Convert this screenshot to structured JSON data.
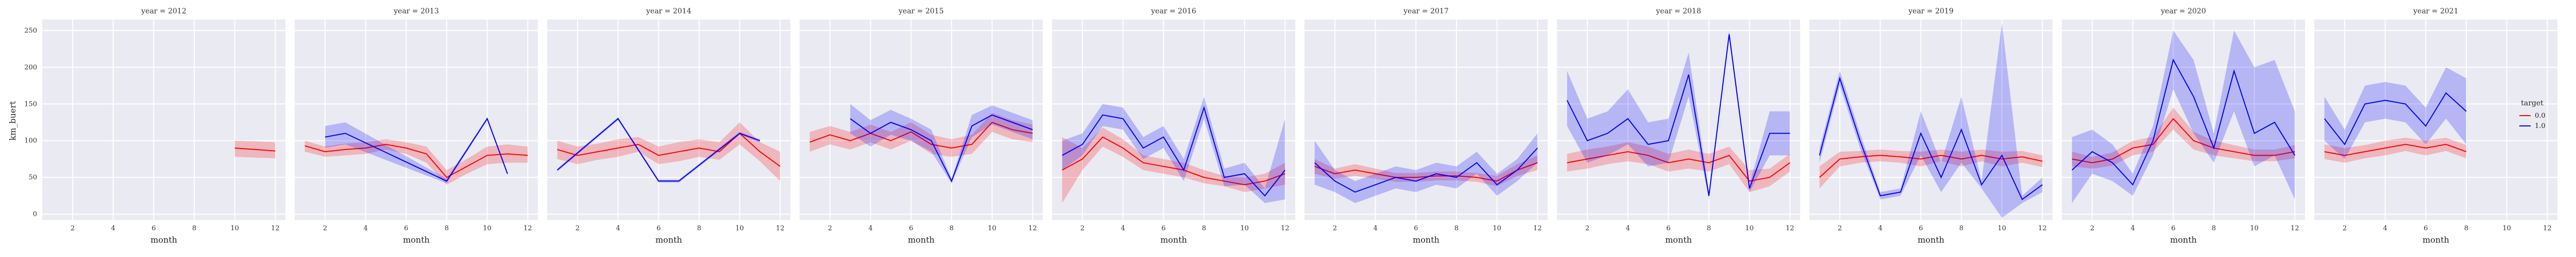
{
  "chart_data": {
    "type": "line",
    "facet_by": "year",
    "xlabel": "month",
    "ylabel": "km_buert",
    "xlim": [
      0.5,
      12.5
    ],
    "ylim": [
      -8,
      265
    ],
    "xticks": [
      "2",
      "4",
      "6",
      "8",
      "10",
      "12"
    ],
    "xtick_values": [
      2,
      4,
      6,
      8,
      10,
      12
    ],
    "yticks": [
      "0",
      "50",
      "100",
      "150",
      "200",
      "250"
    ],
    "ytick_values": [
      0,
      50,
      100,
      150,
      200,
      250
    ],
    "grid": true,
    "legend": {
      "title": "target",
      "placement": "right",
      "entries": [
        {
          "label": "0.0",
          "color": "#ff0000"
        },
        {
          "label": "1.0",
          "color": "#0000ff"
        }
      ]
    },
    "series_colors": {
      "0.0": "#ff0000",
      "1.0": "#0000ff"
    },
    "panels": [
      {
        "title": "year = 2012",
        "series": [
          {
            "name": "0.0",
            "x": [
              10,
              12
            ],
            "y": [
              90,
              86
            ],
            "lo": [
              78,
              76
            ],
            "hi": [
              100,
              98
            ]
          },
          {
            "name": "1.0",
            "x": [],
            "y": [],
            "lo": [],
            "hi": []
          }
        ]
      },
      {
        "title": "year = 2013",
        "series": [
          {
            "name": "0.0",
            "x": [
              1,
              2,
              3,
              4,
              5,
              6,
              7,
              8,
              9,
              10,
              11,
              12
            ],
            "y": [
              93,
              85,
              88,
              90,
              95,
              90,
              82,
              50,
              65,
              80,
              82,
              80
            ],
            "lo": [
              85,
              78,
              80,
              82,
              88,
              82,
              70,
              40,
              55,
              68,
              70,
              70
            ],
            "hi": [
              100,
              92,
              96,
              98,
              102,
              98,
              92,
              60,
              75,
              92,
              95,
              92
            ]
          },
          {
            "name": "1.0",
            "x": [
              2,
              3,
              8,
              10,
              11
            ],
            "y": [
              105,
              110,
              45,
              130,
              55
            ],
            "lo": [
              90,
              95,
              42,
              128,
              53
            ],
            "hi": [
              120,
              125,
              48,
              132,
              57
            ]
          }
        ]
      },
      {
        "title": "year = 2014",
        "series": [
          {
            "name": "0.0",
            "x": [
              1,
              2,
              3,
              4,
              5,
              6,
              7,
              8,
              9,
              10,
              11,
              12
            ],
            "y": [
              88,
              80,
              85,
              90,
              95,
              80,
              85,
              90,
              85,
              110,
              85,
              65
            ],
            "lo": [
              75,
              68,
              74,
              78,
              85,
              68,
              72,
              78,
              74,
              95,
              72,
              45
            ],
            "hi": [
              100,
              92,
              96,
              102,
              105,
              92,
              98,
              102,
              98,
              125,
              98,
              85
            ]
          },
          {
            "name": "1.0",
            "x": [
              1,
              4,
              6,
              7,
              10,
              11
            ],
            "y": [
              60,
              130,
              45,
              45,
              110,
              100
            ],
            "lo": [
              58,
              128,
              43,
              43,
              108,
              98
            ],
            "hi": [
              62,
              132,
              47,
              47,
              112,
              102
            ]
          }
        ]
      },
      {
        "title": "year = 2015",
        "series": [
          {
            "name": "0.0",
            "x": [
              1,
              2,
              3,
              4,
              5,
              6,
              7,
              8,
              9,
              10,
              11,
              12
            ],
            "y": [
              98,
              108,
              100,
              110,
              100,
              112,
              95,
              90,
              95,
              125,
              115,
              110
            ],
            "lo": [
              85,
              95,
              88,
              98,
              88,
              100,
              82,
              78,
              82,
              112,
              102,
              98
            ],
            "hi": [
              112,
              120,
              112,
              122,
              112,
              125,
              108,
              102,
              108,
              138,
              128,
              122
            ]
          },
          {
            "name": "1.0",
            "x": [
              3,
              4,
              5,
              6,
              7,
              8,
              9,
              10,
              11,
              12
            ],
            "y": [
              130,
              110,
              125,
              115,
              100,
              45,
              120,
              135,
              125,
              115
            ],
            "lo": [
              110,
              92,
              108,
              100,
              85,
              42,
              105,
              122,
              112,
              102
            ],
            "hi": [
              150,
              128,
              142,
              130,
              115,
              48,
              135,
              148,
              138,
              128
            ]
          }
        ]
      },
      {
        "title": "year = 2016",
        "series": [
          {
            "name": "0.0",
            "x": [
              1,
              2,
              3,
              4,
              5,
              6,
              7,
              8,
              9,
              10,
              11,
              12
            ],
            "y": [
              60,
              75,
              105,
              90,
              70,
              65,
              60,
              50,
              45,
              40,
              45,
              55
            ],
            "lo": [
              15,
              60,
              92,
              78,
              60,
              55,
              50,
              42,
              38,
              30,
              35,
              40
            ],
            "hi": [
              105,
              90,
              118,
              102,
              80,
              75,
              70,
              60,
              52,
              50,
              55,
              70
            ]
          },
          {
            "name": "1.0",
            "x": [
              1,
              2,
              3,
              4,
              5,
              6,
              7,
              8,
              9,
              10,
              11,
              12
            ],
            "y": [
              80,
              95,
              135,
              130,
              90,
              105,
              60,
              145,
              50,
              55,
              25,
              60
            ],
            "lo": [
              60,
              80,
              120,
              115,
              75,
              90,
              45,
              130,
              38,
              40,
              15,
              20
            ],
            "hi": [
              100,
              110,
              150,
              145,
              105,
              120,
              75,
              160,
              62,
              70,
              35,
              130
            ]
          }
        ]
      },
      {
        "title": "year = 2017",
        "series": [
          {
            "name": "0.0",
            "x": [
              1,
              2,
              3,
              4,
              5,
              6,
              7,
              8,
              9,
              10,
              11,
              12
            ],
            "y": [
              65,
              55,
              60,
              55,
              50,
              50,
              52,
              52,
              50,
              45,
              60,
              70
            ],
            "lo": [
              55,
              48,
              52,
              48,
              44,
              44,
              46,
              46,
              44,
              38,
              52,
              60
            ],
            "hi": [
              75,
              62,
              68,
              62,
              56,
              56,
              58,
              58,
              56,
              52,
              68,
              80
            ]
          },
          {
            "name": "1.0",
            "x": [
              1,
              2,
              3,
              4,
              5,
              6,
              7,
              8,
              9,
              10,
              11,
              12
            ],
            "y": [
              70,
              45,
              30,
              40,
              50,
              45,
              55,
              50,
              70,
              40,
              60,
              90
            ],
            "lo": [
              40,
              30,
              15,
              25,
              35,
              30,
              40,
              35,
              55,
              25,
              45,
              70
            ],
            "hi": [
              100,
              60,
              45,
              55,
              65,
              60,
              70,
              65,
              85,
              55,
              75,
              110
            ]
          }
        ]
      },
      {
        "title": "year = 2018",
        "series": [
          {
            "name": "0.0",
            "x": [
              1,
              2,
              3,
              4,
              5,
              6,
              7,
              8,
              9,
              10,
              11,
              12
            ],
            "y": [
              70,
              75,
              80,
              85,
              80,
              70,
              75,
              70,
              80,
              45,
              50,
              70
            ],
            "lo": [
              58,
              62,
              68,
              72,
              68,
              58,
              62,
              58,
              68,
              30,
              38,
              58
            ],
            "hi": [
              82,
              88,
              92,
              98,
              92,
              82,
              88,
              82,
              92,
              60,
              62,
              82
            ]
          },
          {
            "name": "1.0",
            "x": [
              1,
              2,
              3,
              4,
              5,
              6,
              7,
              8,
              9,
              10,
              11,
              12
            ],
            "y": [
              155,
              100,
              110,
              130,
              95,
              100,
              190,
              25,
              245,
              35,
              110,
              110
            ],
            "lo": [
              120,
              70,
              80,
              95,
              65,
              70,
              160,
              20,
              240,
              30,
              80,
              80
            ],
            "hi": [
              195,
              130,
              140,
              170,
              125,
              130,
              220,
              30,
              250,
              40,
              140,
              140
            ]
          }
        ]
      },
      {
        "title": "year = 2019",
        "series": [
          {
            "name": "0.0",
            "x": [
              1,
              2,
              3,
              4,
              5,
              6,
              7,
              8,
              9,
              10,
              11,
              12
            ],
            "y": [
              50,
              75,
              78,
              80,
              78,
              75,
              80,
              75,
              80,
              75,
              78,
              72
            ],
            "lo": [
              35,
              65,
              70,
              72,
              70,
              65,
              72,
              65,
              72,
              65,
              70,
              64
            ],
            "hi": [
              65,
              85,
              86,
              88,
              86,
              85,
              88,
              85,
              88,
              85,
              86,
              80
            ]
          },
          {
            "name": "1.0",
            "x": [
              1,
              2,
              3,
              4,
              5,
              6,
              7,
              8,
              9,
              10,
              11,
              12
            ],
            "y": [
              80,
              185,
              100,
              25,
              30,
              110,
              50,
              115,
              40,
              80,
              20,
              40
            ],
            "lo": [
              70,
              175,
              90,
              20,
              25,
              80,
              30,
              70,
              35,
              -5,
              15,
              30
            ],
            "hi": [
              90,
              195,
              110,
              30,
              35,
              140,
              70,
              160,
              45,
              260,
              25,
              50
            ]
          }
        ]
      },
      {
        "title": "year = 2020",
        "series": [
          {
            "name": "0.0",
            "x": [
              1,
              2,
              3,
              4,
              5,
              6,
              7,
              8,
              9,
              10,
              11,
              12
            ],
            "y": [
              75,
              70,
              75,
              90,
              95,
              130,
              100,
              90,
              85,
              80,
              80,
              85
            ],
            "lo": [
              65,
              62,
              66,
              80,
              85,
              115,
              88,
              80,
              76,
              72,
              72,
              76
            ],
            "hi": [
              85,
              78,
              84,
              100,
              105,
              145,
              112,
              100,
              94,
              88,
              88,
              94
            ]
          },
          {
            "name": "1.0",
            "x": [
              1,
              2,
              3,
              4,
              5,
              6,
              7,
              8,
              9,
              10,
              11,
              12
            ],
            "y": [
              60,
              85,
              70,
              40,
              100,
              210,
              160,
              90,
              195,
              110,
              125,
              80
            ],
            "lo": [
              15,
              55,
              45,
              25,
              80,
              170,
              110,
              70,
              140,
              65,
              80,
              20
            ],
            "hi": [
              105,
              115,
              95,
              55,
              120,
              250,
              210,
              110,
              250,
              200,
              210,
              140
            ]
          }
        ]
      },
      {
        "title": "year = 2021",
        "series": [
          {
            "name": "0.0",
            "x": [
              1,
              2,
              3,
              4,
              5,
              6,
              7,
              8
            ],
            "y": [
              85,
              80,
              85,
              90,
              95,
              90,
              95,
              85
            ],
            "lo": [
              75,
              70,
              76,
              80,
              86,
              80,
              86,
              76
            ],
            "hi": [
              95,
              90,
              94,
              100,
              104,
              100,
              104,
              94
            ]
          },
          {
            "name": "1.0",
            "x": [
              1,
              2,
              3,
              4,
              5,
              6,
              7,
              8
            ],
            "y": [
              130,
              95,
              150,
              155,
              150,
              120,
              165,
              140
            ],
            "lo": [
              100,
              75,
              125,
              130,
              125,
              95,
              130,
              95
            ],
            "hi": [
              160,
              115,
              175,
              180,
              175,
              145,
              200,
              185
            ]
          }
        ]
      }
    ]
  }
}
